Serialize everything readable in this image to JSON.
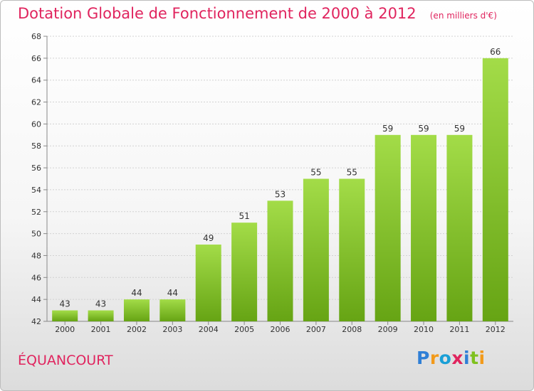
{
  "title": "Dotation Globale de Fonctionnement de 2000 à 2012",
  "unit": "(en milliers d'€)",
  "commune": "ÉQUANCOURT",
  "logo": {
    "text": "Proxiti",
    "letter_colors": [
      "#2f7fd6",
      "#f29a1a",
      "#1a9fd6",
      "#e0245e",
      "#2f7fd6",
      "#7fc11f",
      "#f29a1a"
    ]
  },
  "colors": {
    "title": "#e0245e",
    "bar_light": "#a3dc48",
    "bar_dark": "#66a414"
  },
  "chart_data": {
    "type": "bar",
    "title": "Dotation Globale de Fonctionnement de 2000 à 2012",
    "categories": [
      "2000",
      "2001",
      "2002",
      "2003",
      "2004",
      "2005",
      "2006",
      "2007",
      "2008",
      "2009",
      "2010",
      "2011",
      "2012"
    ],
    "values": [
      43,
      43,
      44,
      44,
      49,
      51,
      53,
      55,
      55,
      59,
      59,
      59,
      66
    ],
    "ylim": [
      42,
      68
    ],
    "yticks": [
      42,
      44,
      46,
      48,
      50,
      52,
      54,
      56,
      58,
      60,
      62,
      64,
      66,
      68
    ],
    "grid": true,
    "data_labels": true
  }
}
